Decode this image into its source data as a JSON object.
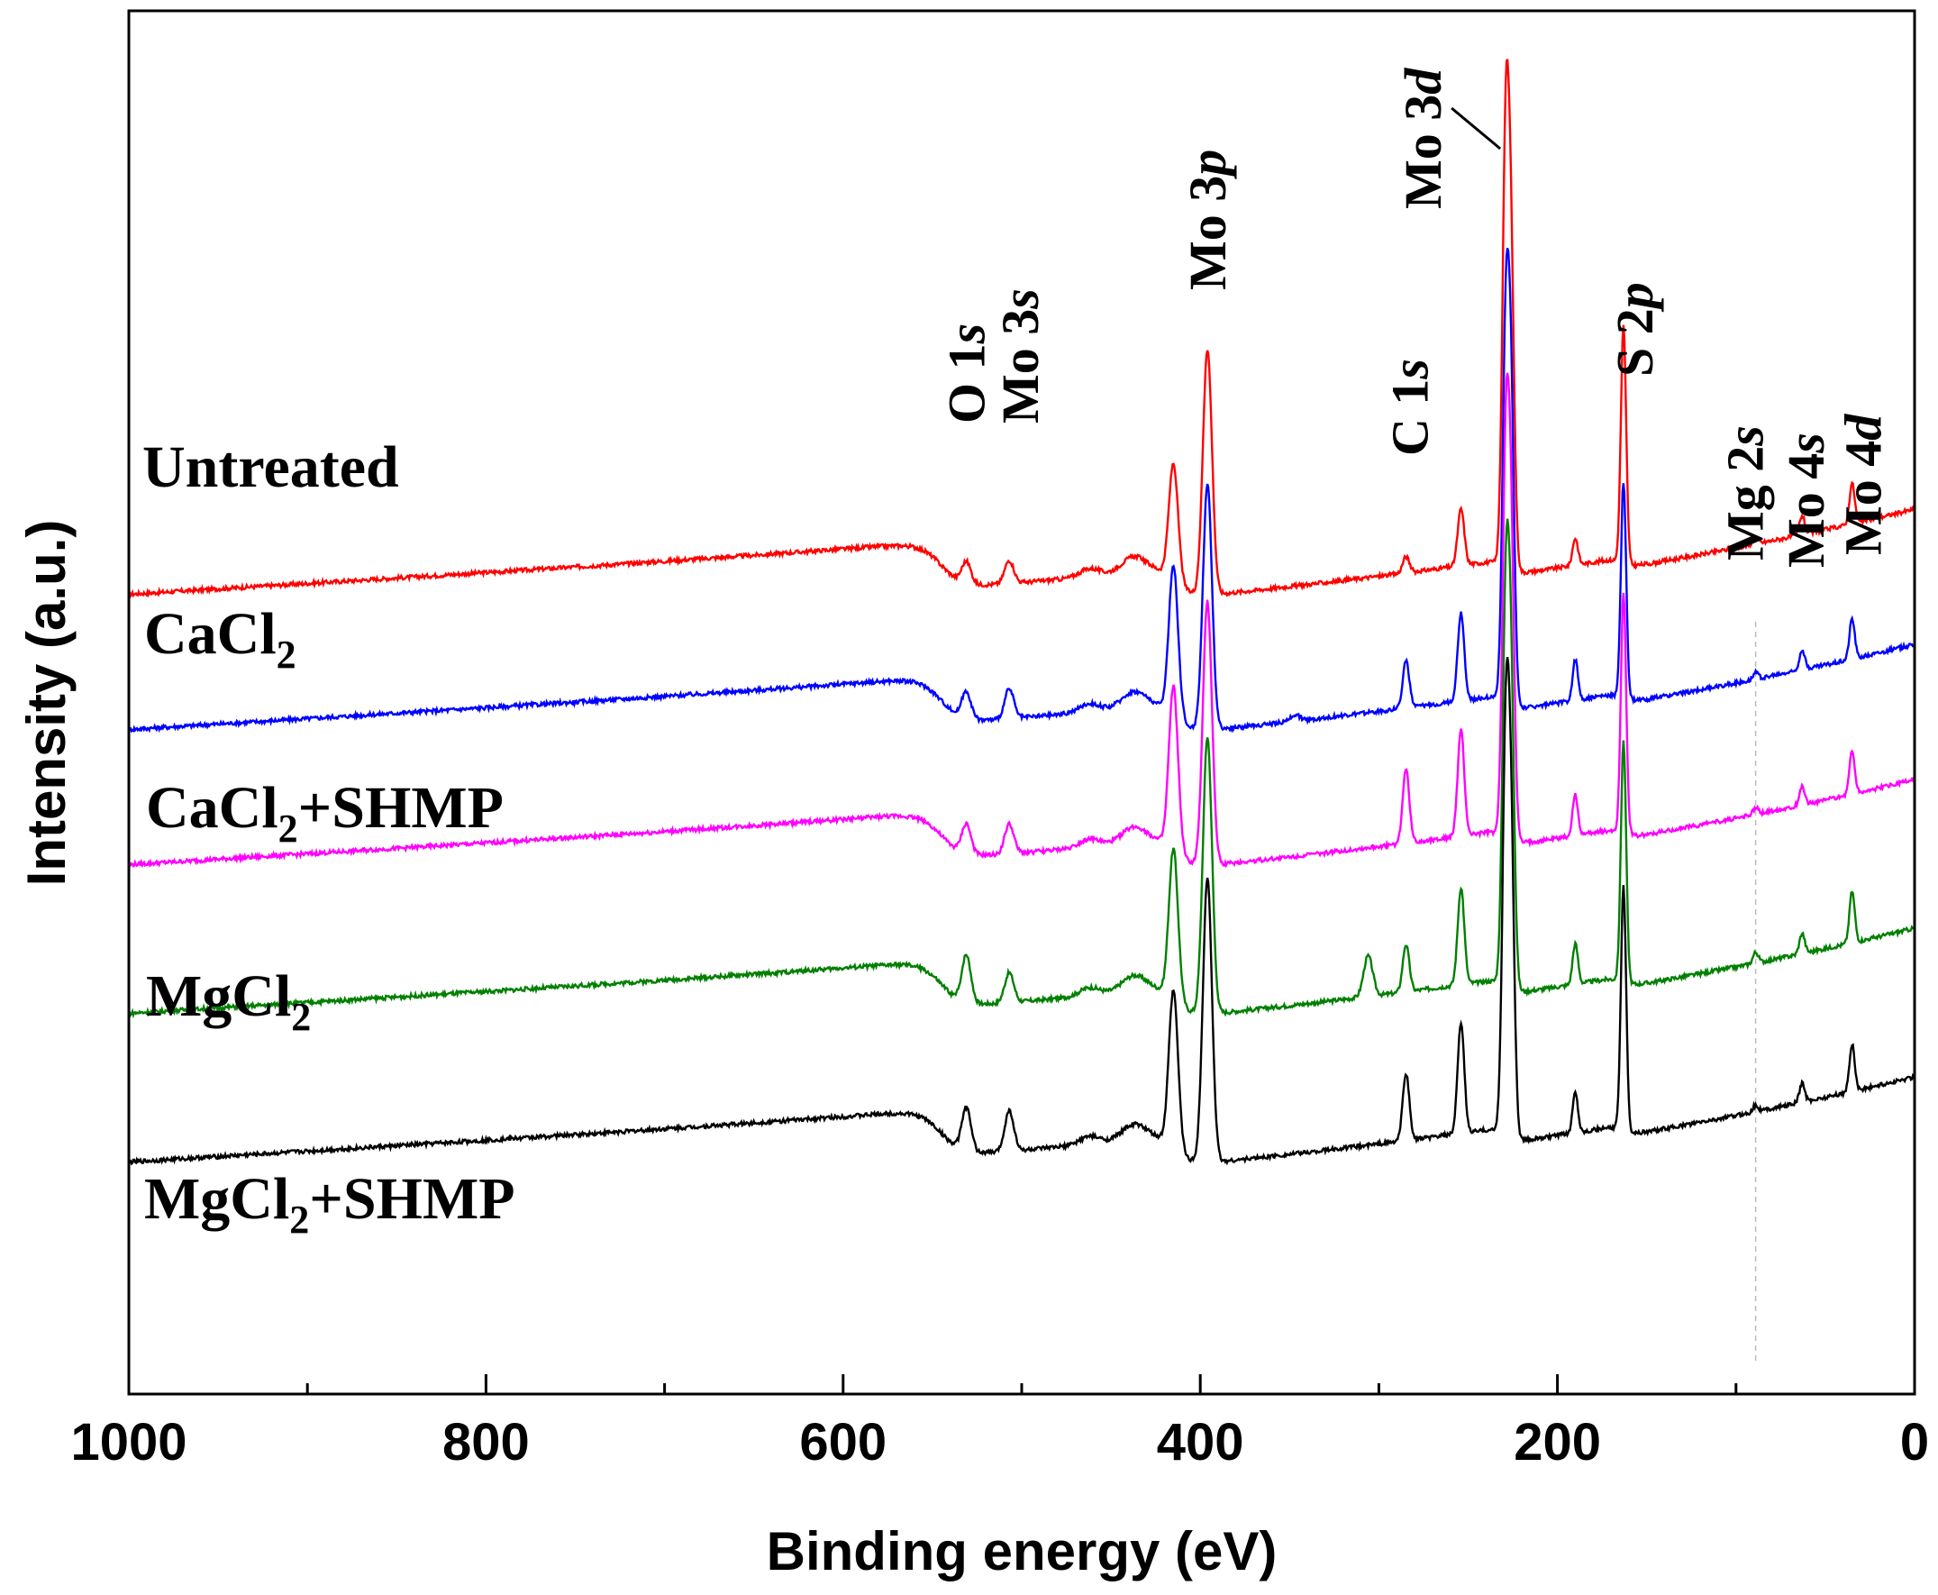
{
  "chart_data": {
    "type": "line",
    "title": "",
    "xlabel": "Binding energy (eV)",
    "ylabel": "Intensity (a.u.)",
    "xlim": [
      1000,
      0
    ],
    "x_reversed": true,
    "y_ticks": false,
    "xticks": [
      1000,
      800,
      600,
      400,
      200,
      0
    ],
    "xtick_labels": [
      "1000",
      "800",
      "600",
      "400",
      "200",
      "0"
    ],
    "series": [
      {
        "name": "Untreated",
        "label_main": "Untreated",
        "label_sub": "",
        "label_rest": "",
        "color": "#ff0000",
        "offset": 4.2,
        "peaks": [
          [
            531,
            0.16
          ],
          [
            507,
            0.17
          ],
          [
            415,
            0.85
          ],
          [
            396,
            1.82
          ],
          [
            284.8,
            0.12
          ],
          [
            254,
            0.42
          ],
          [
            229,
            3.0
          ],
          [
            226,
            2.1
          ],
          [
            163,
            1.75
          ],
          [
            190,
            0.2
          ],
          [
            89,
            0.05
          ],
          [
            63,
            0.14
          ],
          [
            35,
            0.3
          ]
        ]
      },
      {
        "name": "CaCl2",
        "label_main": "CaCl",
        "label_sub": "2",
        "label_rest": "",
        "color": "#0000ff",
        "offset": 3.2,
        "peaks": [
          [
            531,
            0.2
          ],
          [
            507,
            0.22
          ],
          [
            415,
            1.1
          ],
          [
            396,
            1.82
          ],
          [
            347,
            0.05
          ],
          [
            284.8,
            0.35
          ],
          [
            254,
            0.65
          ],
          [
            229,
            2.55
          ],
          [
            226,
            2.1
          ],
          [
            163,
            1.6
          ],
          [
            190,
            0.3
          ],
          [
            89,
            0.05
          ],
          [
            63,
            0.15
          ],
          [
            35,
            0.3
          ]
        ]
      },
      {
        "name": "CaCl2+SHMP",
        "label_main": "CaCl",
        "label_sub": "2",
        "label_rest": "+SHMP",
        "color": "#ff00ff",
        "offset": 2.2,
        "peaks": [
          [
            531,
            0.22
          ],
          [
            507,
            0.22
          ],
          [
            415,
            1.2
          ],
          [
            396,
            1.95
          ],
          [
            284.8,
            0.55
          ],
          [
            254,
            0.78
          ],
          [
            229,
            2.65
          ],
          [
            226,
            2.1
          ],
          [
            163,
            1.78
          ],
          [
            190,
            0.3
          ],
          [
            89,
            0.05
          ],
          [
            63,
            0.14
          ],
          [
            35,
            0.32
          ]
        ]
      },
      {
        "name": "MgCl2",
        "label_main": "MgCl",
        "label_sub": "2",
        "label_rest": "",
        "color": "#008000",
        "offset": 1.1,
        "peaks": [
          [
            531,
            0.35
          ],
          [
            507,
            0.22
          ],
          [
            415,
            1.1
          ],
          [
            396,
            2.05
          ],
          [
            306,
            0.3
          ],
          [
            284.8,
            0.35
          ],
          [
            254,
            0.72
          ],
          [
            229,
            2.65
          ],
          [
            226,
            2.1
          ],
          [
            163,
            1.78
          ],
          [
            190,
            0.3
          ],
          [
            89,
            0.08
          ],
          [
            63,
            0.15
          ],
          [
            35,
            0.38
          ]
        ]
      },
      {
        "name": "MgCl2+SHMP",
        "label_main": "MgCl",
        "label_sub": "2",
        "label_rest": "+SHMP",
        "color": "#000000",
        "offset": 0.0,
        "peaks": [
          [
            531,
            0.32
          ],
          [
            507,
            0.3
          ],
          [
            415,
            1.15
          ],
          [
            396,
            2.1
          ],
          [
            284.8,
            0.5
          ],
          [
            254,
            0.82
          ],
          [
            229,
            2.75
          ],
          [
            226,
            2.1
          ],
          [
            163,
            1.8
          ],
          [
            190,
            0.3
          ],
          [
            89,
            0.05
          ],
          [
            63,
            0.14
          ],
          [
            35,
            0.35
          ]
        ]
      }
    ],
    "annotations": [
      {
        "name": "o-1s",
        "main": "O 1",
        "em": "s",
        "x_ev": 531
      },
      {
        "name": "mo-3s",
        "main": "Mo 3",
        "em": "s",
        "x_ev": 507
      },
      {
        "name": "mo-3p",
        "main": "Mo 3",
        "em": "p",
        "x_ev": 396
      },
      {
        "name": "c-1s",
        "main": "C 1",
        "em": "s",
        "x_ev": 284.8
      },
      {
        "name": "mo-3d",
        "main": "Mo 3",
        "em": "d",
        "x_ev": 229
      },
      {
        "name": "s-2p",
        "main": "S 2",
        "em": "p",
        "x_ev": 163
      },
      {
        "name": "mg-2s",
        "main": "Mg 2",
        "em": "s",
        "x_ev": 89
      },
      {
        "name": "mo-4s",
        "main": "Mo 4",
        "em": "s",
        "x_ev": 63
      },
      {
        "name": "mo-4d",
        "main": "Mo 4",
        "em": "d",
        "x_ev": 35
      }
    ],
    "reference_line_ev": 89
  }
}
